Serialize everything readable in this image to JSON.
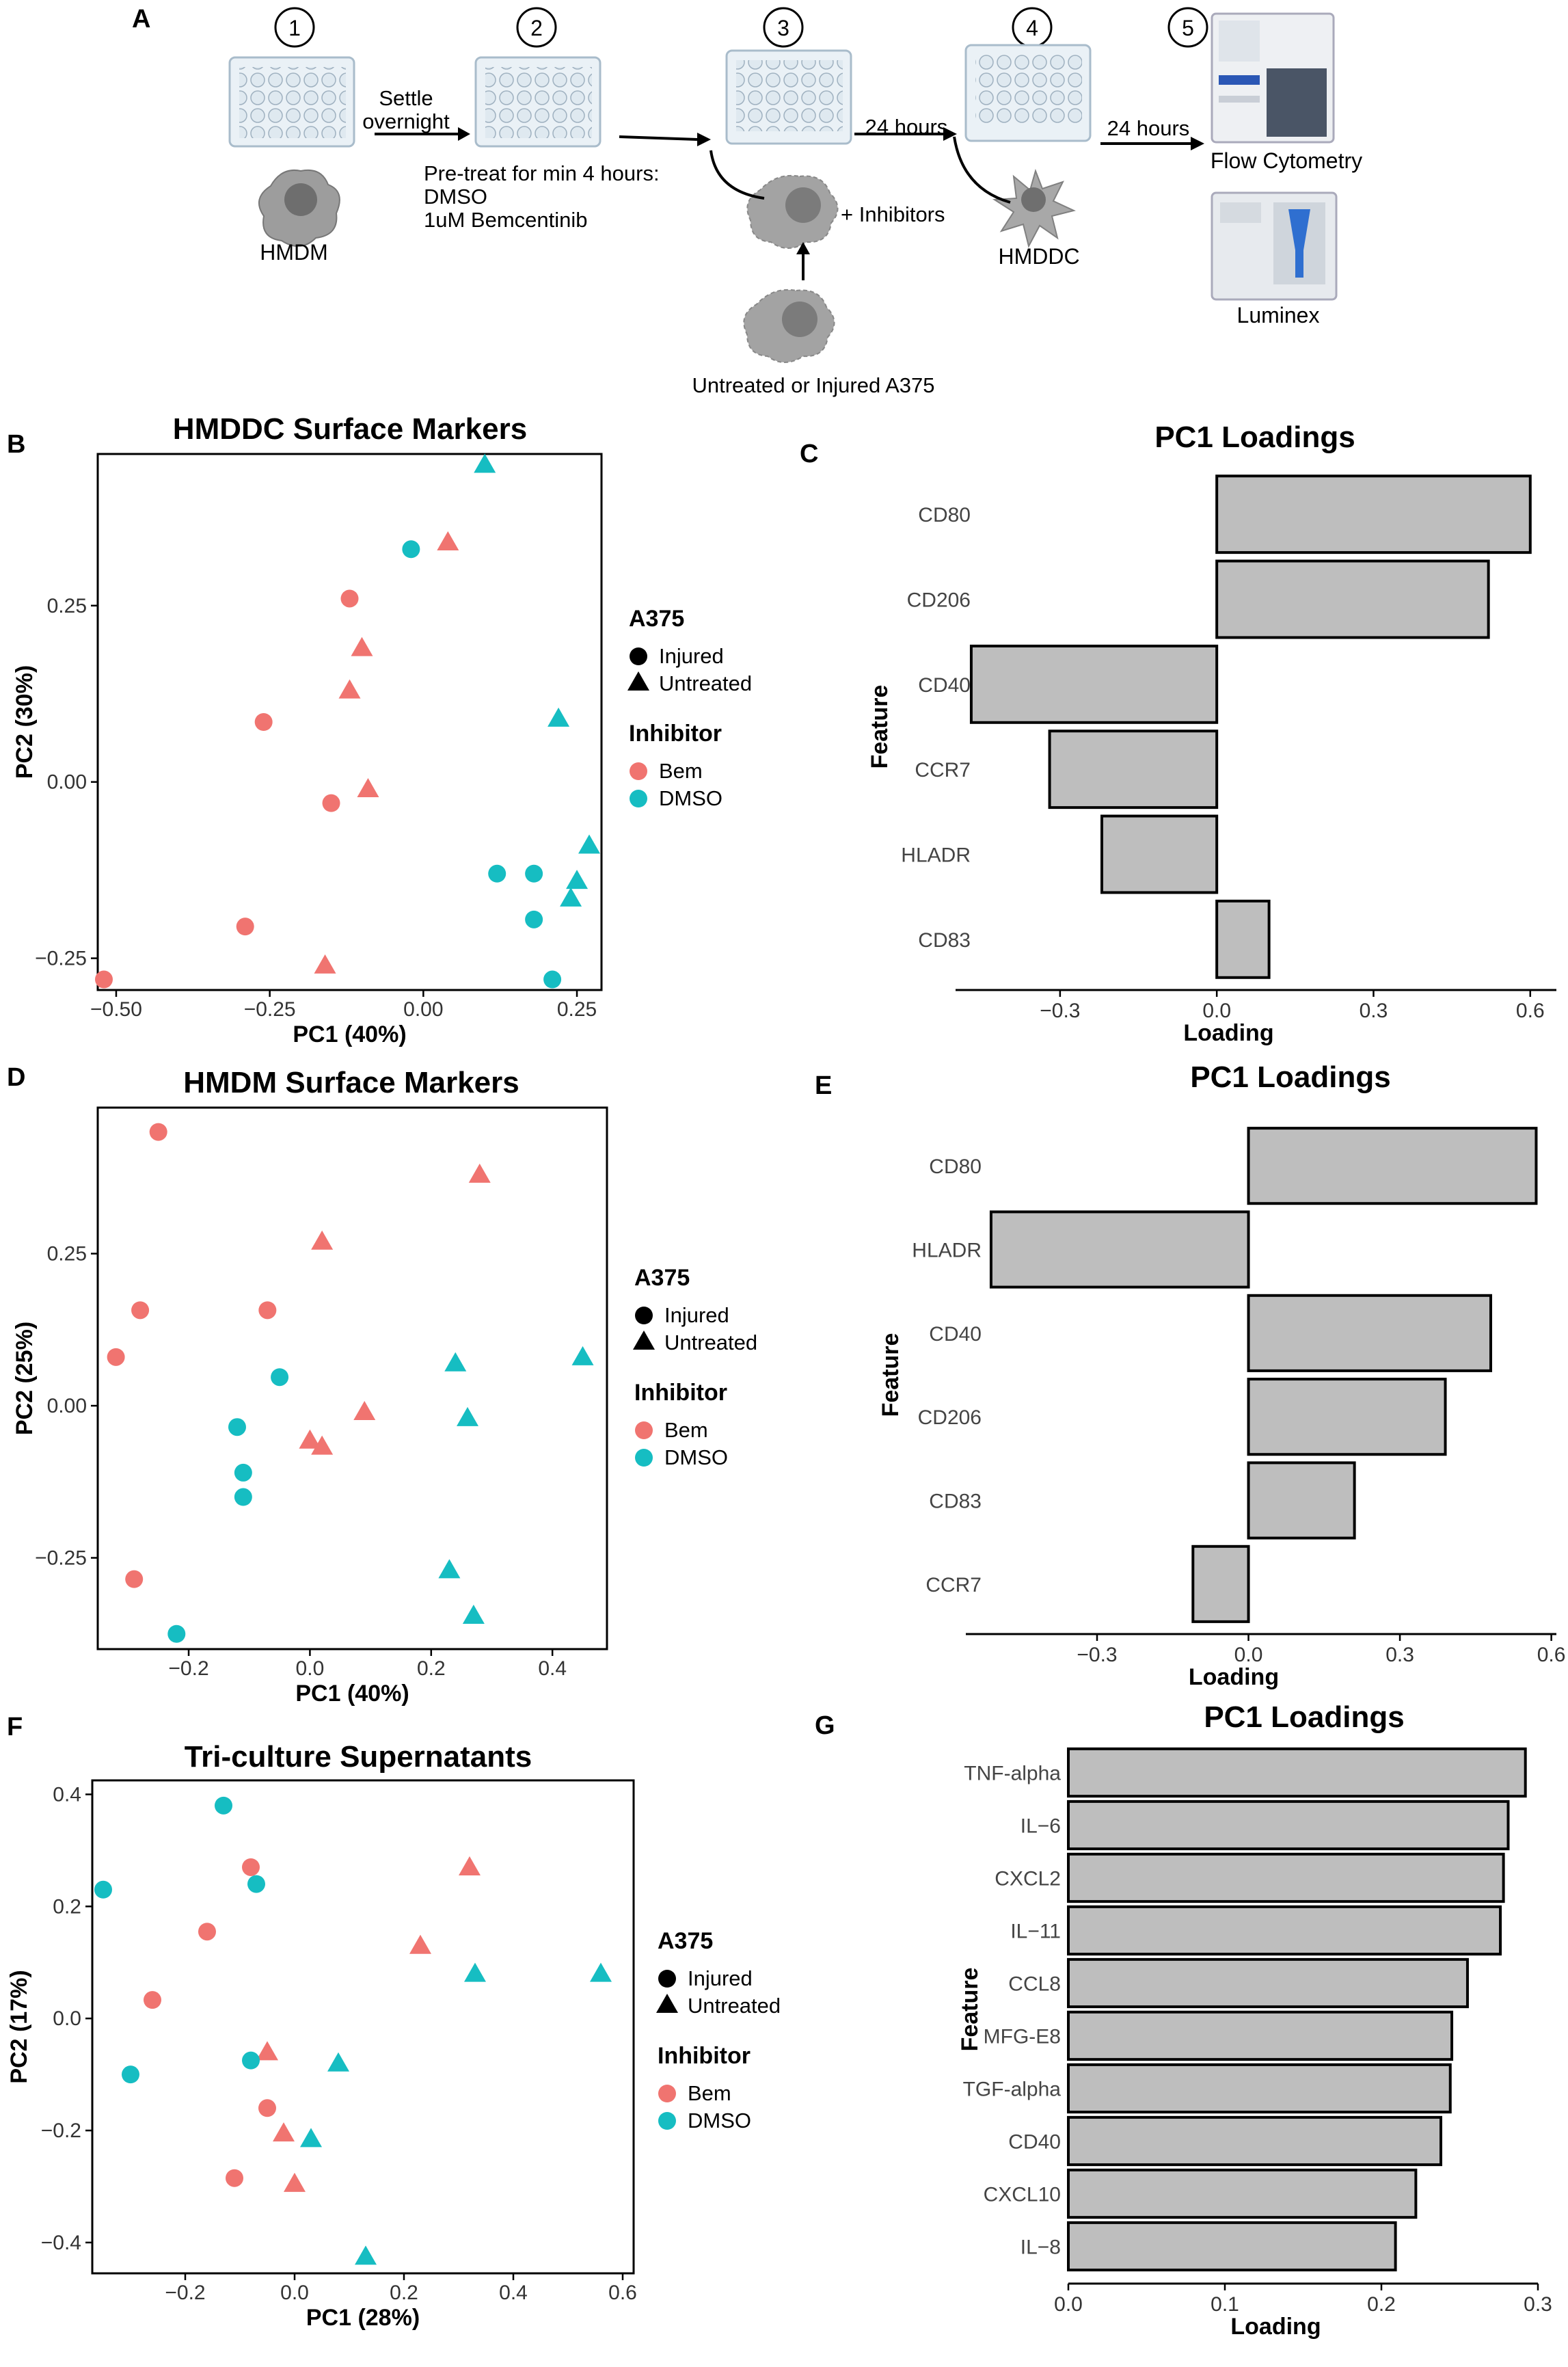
{
  "workflow": {
    "panel_label": "A",
    "steps": [
      "1",
      "2",
      "3",
      "4",
      "5"
    ],
    "settle_line1": "Settle",
    "settle_line2": "overnight",
    "pretreat_line1": "Pre-treat for min 4 hours:",
    "pretreat_line2": "DMSO",
    "pretreat_line3": "1uM Bemcentinib",
    "hmdm_label": "HMDM",
    "inhibitors_label": "+ Inhibitors",
    "a375_label": "Untreated or Injured A375",
    "hours_1": "24 hours",
    "hours_2": "24 hours",
    "hmddc_label": "HMDDC",
    "flow_label": "Flow Cytometry",
    "luminex_label": "Luminex"
  },
  "colors": {
    "bem": "#f07470",
    "dmso": "#16bdc2",
    "bar": "#bebebe",
    "axis": "#000000"
  },
  "legend": {
    "a375_title": "A375",
    "injured": "Injured",
    "untreated": "Untreated",
    "inhibitor_title": "Inhibitor",
    "bem": "Bem",
    "dmso": "DMSO"
  },
  "chart_data": [
    {
      "panel": "B",
      "type": "scatter",
      "title": "HMDDC Surface Markers",
      "xlabel": "PC1 (40%)",
      "ylabel": "PC2 (30%)",
      "xlim": [
        -0.53,
        0.29
      ],
      "ylim": [
        -0.295,
        0.465
      ],
      "xticks": [
        -0.5,
        -0.25,
        0.0,
        0.25
      ],
      "xtick_labels": [
        "-0.50",
        "-0.25",
        "0.00",
        "0.25"
      ],
      "yticks": [
        -0.25,
        0.0,
        0.25
      ],
      "ytick_labels": [
        "-0.25",
        "0.00",
        "0.25"
      ],
      "points": [
        {
          "x": 0.1,
          "y": 0.45,
          "shape": "triangle",
          "group": "dmso"
        },
        {
          "x": -0.02,
          "y": 0.33,
          "shape": "circle",
          "group": "dmso"
        },
        {
          "x": 0.04,
          "y": 0.34,
          "shape": "triangle",
          "group": "bem"
        },
        {
          "x": -0.12,
          "y": 0.26,
          "shape": "circle",
          "group": "bem"
        },
        {
          "x": -0.1,
          "y": 0.19,
          "shape": "triangle",
          "group": "bem"
        },
        {
          "x": -0.12,
          "y": 0.13,
          "shape": "triangle",
          "group": "bem"
        },
        {
          "x": -0.26,
          "y": 0.085,
          "shape": "circle",
          "group": "bem"
        },
        {
          "x": -0.09,
          "y": -0.01,
          "shape": "triangle",
          "group": "bem"
        },
        {
          "x": -0.15,
          "y": -0.03,
          "shape": "circle",
          "group": "bem"
        },
        {
          "x": 0.22,
          "y": 0.09,
          "shape": "triangle",
          "group": "dmso"
        },
        {
          "x": 0.27,
          "y": -0.09,
          "shape": "triangle",
          "group": "dmso"
        },
        {
          "x": 0.12,
          "y": -0.13,
          "shape": "circle",
          "group": "dmso"
        },
        {
          "x": 0.18,
          "y": -0.13,
          "shape": "circle",
          "group": "dmso"
        },
        {
          "x": 0.25,
          "y": -0.14,
          "shape": "triangle",
          "group": "dmso"
        },
        {
          "x": 0.24,
          "y": -0.165,
          "shape": "triangle",
          "group": "dmso"
        },
        {
          "x": 0.18,
          "y": -0.195,
          "shape": "circle",
          "group": "dmso"
        },
        {
          "x": -0.29,
          "y": -0.205,
          "shape": "circle",
          "group": "bem"
        },
        {
          "x": -0.16,
          "y": -0.26,
          "shape": "triangle",
          "group": "bem"
        },
        {
          "x": 0.21,
          "y": -0.28,
          "shape": "circle",
          "group": "dmso"
        },
        {
          "x": -0.52,
          "y": -0.28,
          "shape": "circle",
          "group": "bem"
        }
      ]
    },
    {
      "panel": "C",
      "type": "bar",
      "orientation": "horizontal",
      "title": "PC1 Loadings",
      "xlabel": "Loading",
      "ylabel": "Feature",
      "xlim": [
        -0.5,
        0.65
      ],
      "xticks": [
        -0.3,
        0.0,
        0.3,
        0.6
      ],
      "xtick_labels": [
        "-0.3",
        "0.0",
        "0.3",
        "0.6"
      ],
      "categories": [
        "CD80",
        "CD206",
        "CD40",
        "CCR7",
        "HLADR",
        "CD83"
      ],
      "values": [
        0.6,
        0.52,
        -0.47,
        -0.32,
        -0.22,
        0.1
      ]
    },
    {
      "panel": "D",
      "type": "scatter",
      "title": "HMDM Surface Markers",
      "xlabel": "PC1 (40%)",
      "ylabel": "PC2 (25%)",
      "xlim": [
        -0.35,
        0.49
      ],
      "ylim": [
        -0.4,
        0.49
      ],
      "xticks": [
        -0.2,
        0.0,
        0.2,
        0.4
      ],
      "xtick_labels": [
        "-0.2",
        "0.0",
        "0.2",
        "0.4"
      ],
      "yticks": [
        -0.25,
        0.0,
        0.25
      ],
      "ytick_labels": [
        "-0.25",
        "0.00",
        "0.25"
      ],
      "points": [
        {
          "x": -0.25,
          "y": 0.45,
          "shape": "circle",
          "group": "bem"
        },
        {
          "x": 0.28,
          "y": 0.38,
          "shape": "triangle",
          "group": "bem"
        },
        {
          "x": 0.02,
          "y": 0.27,
          "shape": "triangle",
          "group": "bem"
        },
        {
          "x": -0.28,
          "y": 0.157,
          "shape": "circle",
          "group": "bem"
        },
        {
          "x": -0.07,
          "y": 0.157,
          "shape": "circle",
          "group": "bem"
        },
        {
          "x": -0.32,
          "y": 0.08,
          "shape": "circle",
          "group": "bem"
        },
        {
          "x": -0.05,
          "y": 0.047,
          "shape": "circle",
          "group": "dmso"
        },
        {
          "x": 0.24,
          "y": 0.07,
          "shape": "triangle",
          "group": "dmso"
        },
        {
          "x": 0.45,
          "y": 0.08,
          "shape": "triangle",
          "group": "dmso"
        },
        {
          "x": 0.09,
          "y": -0.01,
          "shape": "triangle",
          "group": "bem"
        },
        {
          "x": 0.26,
          "y": -0.02,
          "shape": "triangle",
          "group": "dmso"
        },
        {
          "x": -0.12,
          "y": -0.035,
          "shape": "circle",
          "group": "dmso"
        },
        {
          "x": 0.0,
          "y": -0.057,
          "shape": "triangle",
          "group": "bem"
        },
        {
          "x": 0.02,
          "y": -0.067,
          "shape": "triangle",
          "group": "bem"
        },
        {
          "x": -0.11,
          "y": -0.11,
          "shape": "circle",
          "group": "dmso"
        },
        {
          "x": -0.11,
          "y": -0.15,
          "shape": "circle",
          "group": "dmso"
        },
        {
          "x": 0.23,
          "y": -0.27,
          "shape": "triangle",
          "group": "dmso"
        },
        {
          "x": -0.29,
          "y": -0.285,
          "shape": "circle",
          "group": "bem"
        },
        {
          "x": 0.27,
          "y": -0.345,
          "shape": "triangle",
          "group": "dmso"
        },
        {
          "x": -0.22,
          "y": -0.375,
          "shape": "circle",
          "group": "dmso"
        }
      ]
    },
    {
      "panel": "E",
      "type": "bar",
      "orientation": "horizontal",
      "title": "PC1 Loadings",
      "xlabel": "Loading",
      "ylabel": "Feature",
      "xlim": [
        -0.56,
        0.61
      ],
      "xticks": [
        -0.3,
        0.0,
        0.3,
        0.6
      ],
      "xtick_labels": [
        "-0.3",
        "0.0",
        "0.3",
        "0.6"
      ],
      "categories": [
        "CD80",
        "HLADR",
        "CD40",
        "CD206",
        "CD83",
        "CCR7"
      ],
      "values": [
        0.57,
        -0.51,
        0.48,
        0.39,
        0.21,
        -0.11
      ]
    },
    {
      "panel": "F",
      "type": "scatter",
      "title": "Tri-culture Supernatants",
      "xlabel": "PC1 (28%)",
      "ylabel": "PC2 (17%)",
      "xlim": [
        -0.37,
        0.62
      ],
      "ylim": [
        -0.455,
        0.425
      ],
      "xticks": [
        -0.2,
        0.0,
        0.2,
        0.4,
        0.6
      ],
      "xtick_labels": [
        "-0.2",
        "0.0",
        "0.2",
        "0.4",
        "0.6"
      ],
      "yticks": [
        -0.4,
        -0.2,
        0.0,
        0.2,
        0.4
      ],
      "ytick_labels": [
        "-0.4",
        "-0.2",
        "0.0",
        "0.2",
        "0.4"
      ],
      "points": [
        {
          "x": -0.13,
          "y": 0.38,
          "shape": "circle",
          "group": "dmso"
        },
        {
          "x": -0.08,
          "y": 0.27,
          "shape": "circle",
          "group": "bem"
        },
        {
          "x": 0.32,
          "y": 0.27,
          "shape": "triangle",
          "group": "bem"
        },
        {
          "x": -0.07,
          "y": 0.24,
          "shape": "circle",
          "group": "dmso"
        },
        {
          "x": -0.35,
          "y": 0.23,
          "shape": "circle",
          "group": "dmso"
        },
        {
          "x": -0.16,
          "y": 0.155,
          "shape": "circle",
          "group": "bem"
        },
        {
          "x": 0.23,
          "y": 0.13,
          "shape": "triangle",
          "group": "bem"
        },
        {
          "x": 0.33,
          "y": 0.08,
          "shape": "triangle",
          "group": "dmso"
        },
        {
          "x": 0.56,
          "y": 0.08,
          "shape": "triangle",
          "group": "dmso"
        },
        {
          "x": -0.26,
          "y": 0.033,
          "shape": "circle",
          "group": "bem"
        },
        {
          "x": -0.05,
          "y": -0.06,
          "shape": "triangle",
          "group": "bem"
        },
        {
          "x": -0.08,
          "y": -0.075,
          "shape": "circle",
          "group": "dmso"
        },
        {
          "x": 0.08,
          "y": -0.08,
          "shape": "triangle",
          "group": "dmso"
        },
        {
          "x": -0.3,
          "y": -0.1,
          "shape": "circle",
          "group": "dmso"
        },
        {
          "x": -0.05,
          "y": -0.16,
          "shape": "circle",
          "group": "bem"
        },
        {
          "x": -0.02,
          "y": -0.205,
          "shape": "triangle",
          "group": "bem"
        },
        {
          "x": 0.03,
          "y": -0.215,
          "shape": "triangle",
          "group": "dmso"
        },
        {
          "x": -0.11,
          "y": -0.285,
          "shape": "circle",
          "group": "bem"
        },
        {
          "x": 0.0,
          "y": -0.295,
          "shape": "triangle",
          "group": "bem"
        },
        {
          "x": 0.13,
          "y": -0.425,
          "shape": "triangle",
          "group": "dmso"
        }
      ]
    },
    {
      "panel": "G",
      "type": "bar",
      "orientation": "horizontal",
      "title": "PC1 Loadings",
      "xlabel": "Loading",
      "ylabel": "Feature",
      "xlim": [
        0.0,
        0.3
      ],
      "xticks": [
        0.0,
        0.1,
        0.2,
        0.3
      ],
      "xtick_labels": [
        "0.0",
        "0.1",
        "0.2",
        "0.3"
      ],
      "categories": [
        "TNF-alpha",
        "IL-6",
        "CXCL2",
        "IL-11",
        "CCL8",
        "MFG-E8",
        "TGF-alpha",
        "CD40",
        "CXCL10",
        "IL-8"
      ],
      "values": [
        0.292,
        0.281,
        0.278,
        0.276,
        0.255,
        0.245,
        0.244,
        0.238,
        0.222,
        0.209
      ]
    }
  ]
}
